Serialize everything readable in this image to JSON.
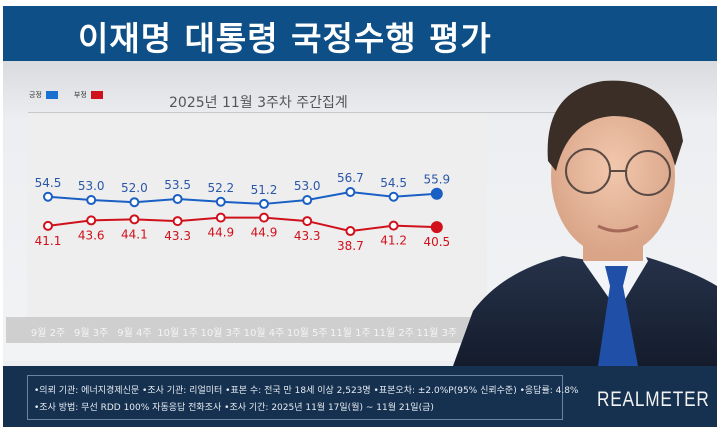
{
  "header": {
    "title": "이재명 대통령 국정수행 평가"
  },
  "legend": [
    {
      "label": "긍정",
      "color": "#1a6fd0"
    },
    {
      "label": "부정",
      "color": "#d0111b"
    }
  ],
  "subtitle": "2025년 11월 3주차 주간집계",
  "chart_data": {
    "type": "line",
    "title": "2025년 11월 3주차 주간집계",
    "categories": [
      "9월 2주",
      "9월 3주",
      "9월 4주",
      "10월 1주",
      "10월 3주",
      "10월 4주",
      "10월 5주",
      "11월 1주",
      "11월 2주",
      "11월 3주"
    ],
    "series": [
      {
        "name": "긍정",
        "color": "#1a5fc4",
        "values": [
          54.5,
          53.0,
          52.0,
          53.5,
          52.2,
          51.2,
          53.0,
          56.7,
          54.5,
          55.9
        ]
      },
      {
        "name": "부정",
        "color": "#d0111b",
        "values": [
          41.1,
          43.6,
          44.1,
          43.3,
          44.9,
          44.9,
          43.3,
          38.7,
          41.2,
          40.5
        ]
      }
    ],
    "xlabel": "",
    "ylabel": "",
    "grid": false,
    "legend_position": "top-left",
    "data_labels": true
  },
  "footer": {
    "line1": "•의뢰 기관: 에너지경제신문 •조사 기관: 리얼미터 •표본 수: 전국 만 18세 이상 2,523명 •표본오차: ±2.0%P(95% 신뢰수준) •응답률: 4.8%",
    "line2": "•조사 방법: 무선 RDD 100% 자동응답 전화조사 •조사 기간: 2025년 11월 17일(월) ~ 11월 21일(금)",
    "brand": "REALMETER"
  }
}
